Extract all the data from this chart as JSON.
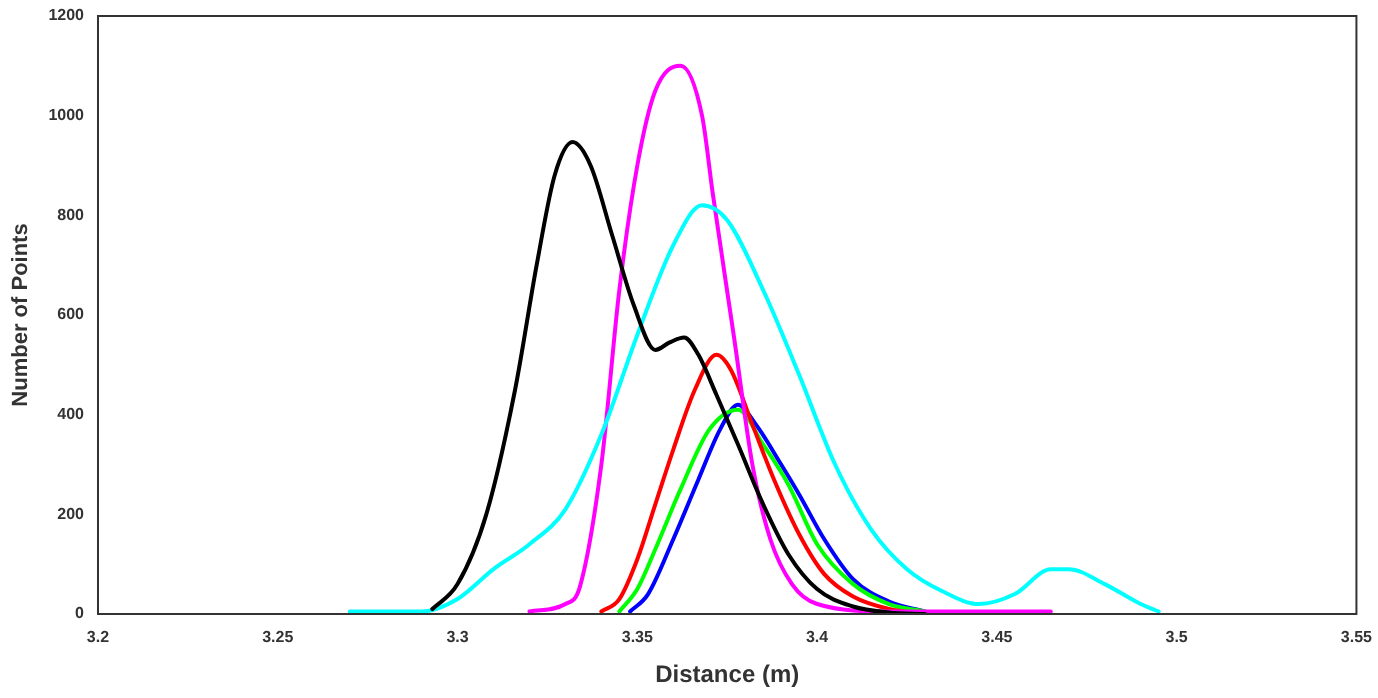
{
  "chart_data": {
    "type": "line",
    "xlabel": "Distance (m)",
    "ylabel": "Number of Points",
    "xlim": [
      3.2,
      3.55
    ],
    "xticks": [
      3.2,
      3.25,
      3.3,
      3.35,
      3.4,
      3.45,
      3.5,
      3.55
    ],
    "ylim": [
      0,
      1200
    ],
    "yticks": [
      0,
      200,
      400,
      600,
      800,
      1000,
      1200
    ],
    "grid": false,
    "legend": false,
    "marker": "none",
    "line_style": "solid",
    "series": [
      {
        "color": "#000000",
        "x": [
          3.293,
          3.3,
          3.308,
          3.316,
          3.322,
          3.327,
          3.332,
          3.337,
          3.343,
          3.349,
          3.355,
          3.359,
          3.363,
          3.367,
          3.372,
          3.378,
          3.385,
          3.392,
          3.4,
          3.41,
          3.42,
          3.43
        ],
        "values": [
          10,
          60,
          200,
          450,
          700,
          880,
          947,
          900,
          760,
          620,
          530,
          545,
          555,
          520,
          440,
          340,
          220,
          120,
          50,
          15,
          3,
          0
        ]
      },
      {
        "color": "#00ffff",
        "x": [
          3.27,
          3.29,
          3.3,
          3.31,
          3.32,
          3.33,
          3.34,
          3.35,
          3.36,
          3.368,
          3.375,
          3.385,
          3.395,
          3.405,
          3.415,
          3.425,
          3.435,
          3.445,
          3.455,
          3.465,
          3.47,
          3.48,
          3.49,
          3.495
        ],
        "values": [
          5,
          5,
          30,
          90,
          140,
          210,
          360,
          560,
          740,
          820,
          790,
          650,
          480,
          300,
          170,
          90,
          45,
          20,
          40,
          90,
          90,
          60,
          20,
          5
        ]
      },
      {
        "color": "#ff00ff",
        "x": [
          3.32,
          3.33,
          3.334,
          3.34,
          3.345,
          3.35,
          3.355,
          3.362,
          3.368,
          3.371,
          3.377,
          3.382,
          3.387,
          3.393,
          3.4,
          3.42,
          3.465
        ],
        "values": [
          5,
          20,
          54,
          300,
          650,
          900,
          1050,
          1100,
          1000,
          843,
          550,
          300,
          150,
          60,
          20,
          5,
          5
        ]
      },
      {
        "color": "#ff0000",
        "x": [
          3.34,
          3.345,
          3.35,
          3.355,
          3.36,
          3.366,
          3.372,
          3.376,
          3.382,
          3.388,
          3.395,
          3.402,
          3.41,
          3.42,
          3.43
        ],
        "values": [
          5,
          30,
          110,
          220,
          330,
          450,
          520,
          490,
          380,
          270,
          160,
          80,
          35,
          10,
          0
        ]
      },
      {
        "color": "#00ff00",
        "x": [
          3.345,
          3.35,
          3.355,
          3.362,
          3.37,
          3.378,
          3.385,
          3.392,
          3.4,
          3.41,
          3.42,
          3.43
        ],
        "values": [
          5,
          50,
          130,
          250,
          370,
          410,
          340,
          260,
          140,
          60,
          20,
          5
        ]
      },
      {
        "color": "#0000ff",
        "x": [
          3.348,
          3.353,
          3.36,
          3.367,
          3.373,
          3.378,
          3.383,
          3.39,
          3.395,
          3.402,
          3.41,
          3.42,
          3.43
        ],
        "values": [
          5,
          40,
          150,
          270,
          370,
          420,
          380,
          300,
          240,
          150,
          70,
          25,
          5
        ]
      }
    ]
  }
}
